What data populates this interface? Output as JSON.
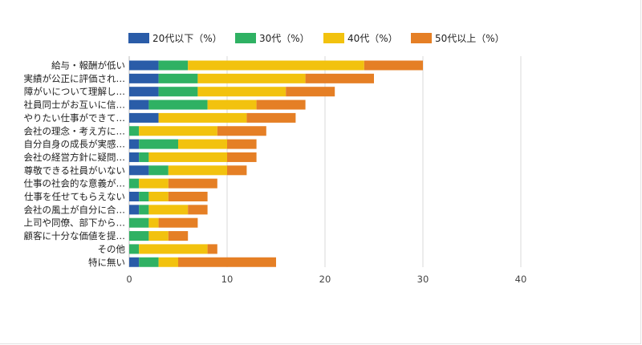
{
  "chart_data": {
    "type": "bar",
    "orientation": "horizontal",
    "stacked": true,
    "categories": [
      "給与・報酬が低い",
      "実績が公正に評価され…",
      "障がいについて理解し…",
      "社員同士がお互いに信…",
      "やりたい仕事ができて…",
      "会社の理念・考え方に…",
      "自分自身の成長が実感…",
      "会社の経営方針に疑問…",
      "尊敬できる社員がいない",
      "仕事の社会的な意義が…",
      "仕事を任せてもらえない",
      "会社の風土が自分に合…",
      "上司や同僚、部下から…",
      "顧客に十分な価値を提…",
      "その他",
      "特に無い"
    ],
    "series": [
      {
        "name": "20代以下（%）",
        "color": "#2a5ca8",
        "values": [
          3,
          3,
          3,
          2,
          3,
          0,
          1,
          1,
          2,
          0,
          1,
          1,
          0,
          0,
          0,
          1
        ]
      },
      {
        "name": "30代（%）",
        "color": "#2fb163",
        "values": [
          3,
          4,
          4,
          6,
          0,
          1,
          4,
          1,
          2,
          1,
          1,
          1,
          2,
          2,
          1,
          2
        ]
      },
      {
        "name": "40代（%）",
        "color": "#f2c20e",
        "values": [
          18,
          11,
          9,
          5,
          9,
          8,
          5,
          8,
          6,
          3,
          2,
          4,
          1,
          2,
          7,
          2
        ]
      },
      {
        "name": "50代以上（%）",
        "color": "#e57f25",
        "values": [
          6,
          7,
          5,
          5,
          5,
          5,
          3,
          3,
          2,
          5,
          4,
          2,
          4,
          2,
          1,
          10
        ]
      }
    ],
    "x_ticks": [
      "0",
      "10",
      "20",
      "30",
      "40"
    ],
    "xlim": [
      0,
      40
    ],
    "grid": true,
    "legend_position": "top"
  }
}
